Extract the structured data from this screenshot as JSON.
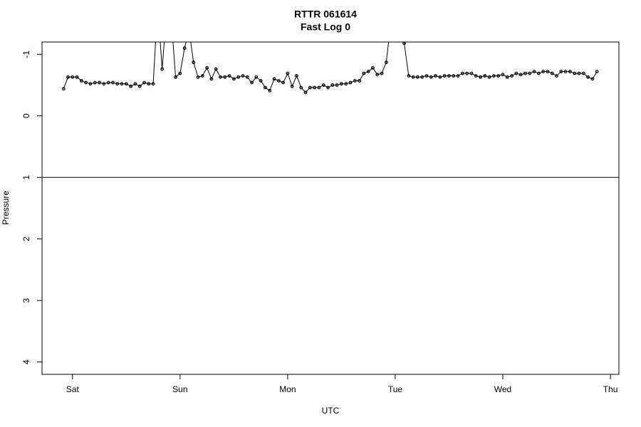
{
  "chart_data": {
    "type": "line",
    "title": "RTTR 061614",
    "subtitle": "Fast Log 0",
    "x_label": "UTC",
    "y_label": "Pressure",
    "x": [
      -2,
      -1,
      0,
      1,
      2,
      3,
      4,
      5,
      6,
      7,
      8,
      9,
      10,
      11,
      12,
      13,
      14,
      15,
      16,
      17,
      18,
      19,
      20,
      21,
      22,
      23,
      24,
      25,
      26,
      27,
      28,
      29,
      30,
      31,
      32,
      33,
      34,
      35,
      36,
      37,
      38,
      39,
      40,
      41,
      42,
      43,
      44,
      45,
      46,
      47,
      48,
      49,
      50,
      51,
      52,
      53,
      54,
      55,
      56,
      57,
      58,
      59,
      60,
      61,
      62,
      63,
      64,
      65,
      66,
      67,
      68,
      69,
      70,
      71,
      72,
      73,
      74,
      75,
      76,
      77,
      78,
      79,
      80,
      81,
      82,
      83,
      84,
      85,
      86,
      87,
      88,
      89,
      90,
      91,
      92,
      93,
      94,
      95,
      96,
      97,
      98,
      99,
      100,
      101,
      102,
      103,
      104,
      105,
      106,
      107,
      108,
      109,
      110,
      111,
      112,
      113,
      114,
      115,
      116,
      117
    ],
    "series": [
      {
        "color": "#000000",
        "values": [
          -0.44,
          -0.63,
          -0.63,
          -0.63,
          -0.57,
          -0.54,
          -0.52,
          -0.54,
          -0.54,
          -0.52,
          -0.54,
          -0.54,
          -0.52,
          -0.52,
          -0.52,
          -0.48,
          -0.52,
          -0.48,
          -0.54,
          -0.52,
          -0.52,
          -1.8,
          -0.76,
          -1.7,
          -1.6,
          -0.63,
          -0.69,
          -1.1,
          -1.4,
          -0.87,
          -0.63,
          -0.65,
          -0.78,
          -0.6,
          -0.76,
          -0.63,
          -0.63,
          -0.65,
          -0.6,
          -0.63,
          -0.65,
          -0.63,
          -0.54,
          -0.63,
          -0.57,
          -0.46,
          -0.41,
          -0.6,
          -0.57,
          -0.54,
          -0.69,
          -0.48,
          -0.65,
          -0.46,
          -0.38,
          -0.46,
          -0.46,
          -0.46,
          -0.5,
          -0.46,
          -0.5,
          -0.5,
          -0.52,
          -0.52,
          -0.54,
          -0.57,
          -0.57,
          -0.69,
          -0.72,
          -0.78,
          -0.67,
          -0.69,
          -0.87,
          -1.5,
          -1.6,
          -1.5,
          -1.18,
          -0.65,
          -0.63,
          -0.63,
          -0.63,
          -0.65,
          -0.63,
          -0.65,
          -0.63,
          -0.65,
          -0.65,
          -0.65,
          -0.65,
          -0.69,
          -0.69,
          -0.69,
          -0.65,
          -0.63,
          -0.65,
          -0.63,
          -0.65,
          -0.65,
          -0.67,
          -0.63,
          -0.65,
          -0.69,
          -0.67,
          -0.69,
          -0.69,
          -0.72,
          -0.69,
          -0.72,
          -0.72,
          -0.69,
          -0.65,
          -0.72,
          -0.72,
          -0.72,
          -0.69,
          -0.69,
          -0.69,
          -0.63,
          -0.6,
          -0.72
        ]
      }
    ],
    "xlim": [
      -6.8,
      121.9
    ],
    "xticks": [
      {
        "value": 0,
        "label": "Sat"
      },
      {
        "value": 24,
        "label": "Sun"
      },
      {
        "value": 48,
        "label": "Mon"
      },
      {
        "value": 72,
        "label": "Tue"
      },
      {
        "value": 96,
        "label": "Wed"
      },
      {
        "value": 120,
        "label": "Thu"
      }
    ],
    "ylim": [
      4.2,
      -1.2
    ],
    "yticks": [
      -1,
      0,
      1,
      2,
      3,
      4
    ],
    "reference_line": 1
  }
}
